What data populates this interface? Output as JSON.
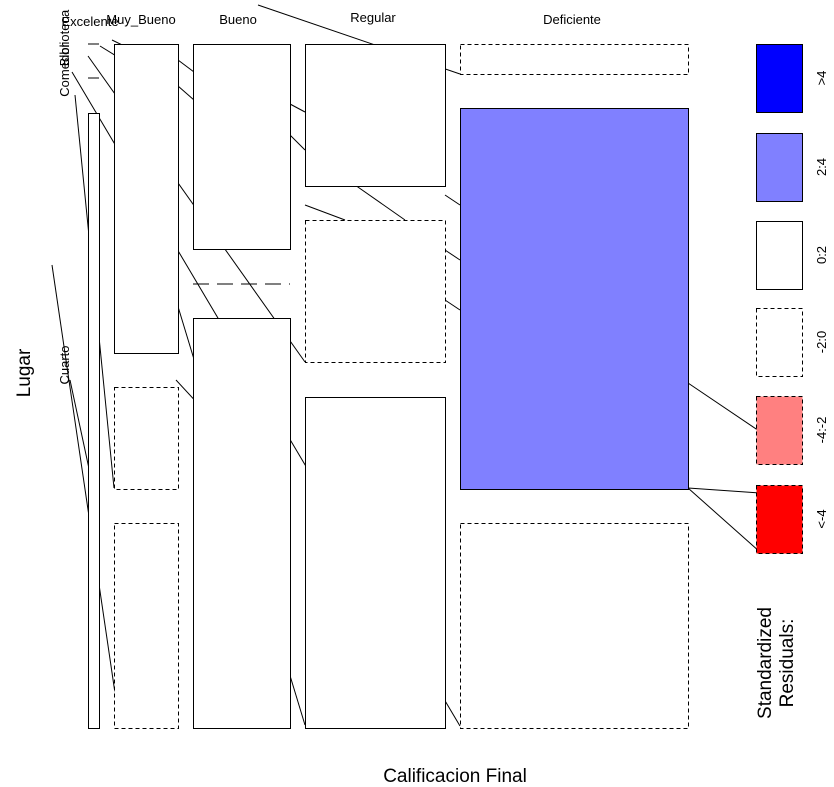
{
  "chart_data": {
    "type": "mosaic",
    "xlabel": "Calificacion Final",
    "ylabel": "Lugar",
    "columns": [
      "Excelente",
      "Muy_Bueno",
      "Bueno",
      "Regular",
      "Deficiente"
    ],
    "rows": [
      "Biblioteca",
      "Comedor",
      "Cuarto"
    ],
    "row_labels_visible": [
      "Biblioteca",
      "Comedor",
      "Cuarto"
    ],
    "column_widths": [
      0.02,
      0.12,
      0.17,
      0.26,
      0.43
    ],
    "cells": [
      {
        "column": "Excelente",
        "row": "Biblioteca",
        "height": 0.0,
        "residual_class": "-2:0"
      },
      {
        "column": "Excelente",
        "row": "Comedor",
        "height": 0.0,
        "residual_class": "-2:0"
      },
      {
        "column": "Excelente",
        "row": "Cuarto",
        "height": 1.0,
        "residual_class": "0:2"
      },
      {
        "column": "Muy_Bueno",
        "row": "Biblioteca",
        "height": 0.45,
        "residual_class": "0:2"
      },
      {
        "column": "Muy_Bueno",
        "row": "Comedor",
        "height": 0.155,
        "residual_class": "-2:0"
      },
      {
        "column": "Muy_Bueno",
        "row": "Cuarto",
        "height": 0.3,
        "residual_class": "-2:0"
      },
      {
        "column": "Bueno",
        "row": "Biblioteca",
        "height": 0.3,
        "residual_class": "0:2"
      },
      {
        "column": "Bueno",
        "row": "Comedor",
        "height": 0.0,
        "residual_class": "-2:0"
      },
      {
        "column": "Bueno",
        "row": "Cuarto",
        "height": 0.6,
        "residual_class": "0:2"
      },
      {
        "column": "Regular",
        "row": "Biblioteca",
        "height": 0.205,
        "residual_class": "0:2"
      },
      {
        "column": "Regular",
        "row": "Comedor",
        "height": 0.225,
        "residual_class": "-2:0"
      },
      {
        "column": "Regular",
        "row": "Cuarto",
        "height": 0.5,
        "residual_class": "0:2"
      },
      {
        "column": "Deficiente",
        "row": "Biblioteca",
        "height": 0.04,
        "residual_class": "-2:0"
      },
      {
        "column": "Deficiente",
        "row": "Comedor",
        "height": 0.555,
        "residual_class": "2:4"
      },
      {
        "column": "Deficiente",
        "row": "Cuarto",
        "height": 0.3,
        "residual_class": "-2:0"
      }
    ],
    "legend": {
      "title_line1": "Standardized",
      "title_line2": "Residuals:",
      "entries": [
        {
          "label": ">4",
          "fill": "#0000ff",
          "dashed": false
        },
        {
          "label": "2:4",
          "fill": "#8080ff",
          "dashed": false
        },
        {
          "label": "0:2",
          "fill": "#ffffff",
          "dashed": false
        },
        {
          "label": "-2:0",
          "fill": "#ffffff",
          "dashed": true
        },
        {
          "label": "-4:-2",
          "fill": "#ff8080",
          "dashed": true
        },
        {
          "label": "<-4",
          "fill": "#ff0000",
          "dashed": true
        }
      ]
    }
  }
}
